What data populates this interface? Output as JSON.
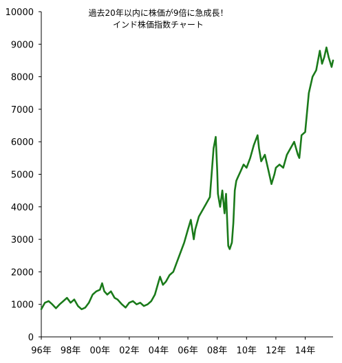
{
  "chart_data": {
    "type": "line",
    "title": "過去20年以内に株価が9倍に急成長！",
    "subtitle": "インド株価指数チャート",
    "xlabel": "",
    "ylabel": "",
    "ylim": [
      0,
      10000
    ],
    "yticks": [
      "0",
      "1000",
      "2000",
      "3000",
      "4000",
      "5000",
      "6000",
      "7000",
      "8000",
      "9000",
      "10000"
    ],
    "xticks": [
      "96年",
      "98年",
      "00年",
      "02年",
      "04年",
      "06年",
      "08年",
      "10年",
      "12年",
      "14年"
    ],
    "xlim": [
      1996,
      2015.9
    ],
    "grid": false,
    "line_color": "#1a7a1a",
    "series": [
      {
        "x": [
          1996.0,
          1996.25,
          1996.5,
          1996.75,
          1997.0,
          1997.25,
          1997.5,
          1997.75,
          1998.0,
          1998.25,
          1998.5,
          1998.75,
          1999.0,
          1999.25,
          1999.5,
          1999.75,
          2000.0,
          2000.15,
          2000.3,
          2000.5,
          2000.75,
          2001.0,
          2001.2,
          2001.5,
          2001.75,
          2002.0,
          2002.25,
          2002.5,
          2002.75,
          2003.0,
          2003.25,
          2003.5,
          2003.75,
          2004.0,
          2004.1,
          2004.3,
          2004.5,
          2004.75,
          2005.0,
          2005.25,
          2005.5,
          2005.75,
          2006.0,
          2006.2,
          2006.4,
          2006.5,
          2006.75,
          2007.0,
          2007.25,
          2007.5,
          2007.75,
          2007.9,
          2008.0,
          2008.05,
          2008.2,
          2008.35,
          2008.5,
          2008.6,
          2008.75,
          2008.85,
          2009.0,
          2009.1,
          2009.2,
          2009.3,
          2009.4,
          2009.6,
          2009.8,
          2010.0,
          2010.25,
          2010.5,
          2010.75,
          2010.85,
          2011.0,
          2011.25,
          2011.5,
          2011.7,
          2011.9,
          2012.0,
          2012.25,
          2012.5,
          2012.75,
          2013.0,
          2013.25,
          2013.5,
          2013.6,
          2013.75,
          2014.0,
          2014.25,
          2014.5,
          2014.75,
          2015.0,
          2015.15,
          2015.3,
          2015.45,
          2015.6,
          2015.8,
          2015.9
        ],
        "values": [
          850,
          1050,
          1100,
          1000,
          880,
          1000,
          1100,
          1200,
          1050,
          1150,
          950,
          850,
          900,
          1050,
          1300,
          1400,
          1450,
          1650,
          1400,
          1300,
          1400,
          1200,
          1150,
          1000,
          900,
          1050,
          1100,
          1000,
          1050,
          950,
          1000,
          1100,
          1300,
          1700,
          1850,
          1600,
          1700,
          1900,
          2000,
          2300,
          2600,
          2900,
          3300,
          3600,
          3000,
          3300,
          3700,
          3900,
          4100,
          4300,
          5800,
          6150,
          5100,
          4400,
          4000,
          4500,
          3800,
          4400,
          2800,
          2700,
          2900,
          3500,
          4500,
          4800,
          4900,
          5100,
          5300,
          5200,
          5500,
          5900,
          6200,
          5800,
          5400,
          5600,
          5100,
          4700,
          5000,
          5200,
          5300,
          5200,
          5600,
          5800,
          6000,
          5600,
          5500,
          6200,
          6300,
          7500,
          8000,
          8200,
          8800,
          8400,
          8600,
          8900,
          8600,
          8300,
          8500
        ]
      }
    ]
  }
}
